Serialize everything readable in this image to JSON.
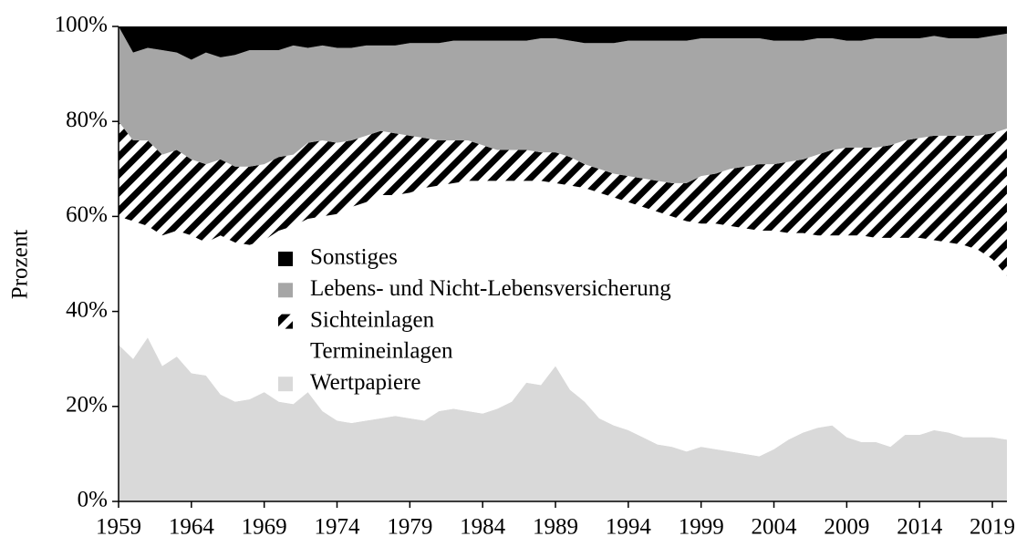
{
  "chart_data": {
    "type": "stacked_area",
    "y_label": "Prozent",
    "x": [
      1959,
      1960,
      1961,
      1962,
      1963,
      1964,
      1965,
      1966,
      1967,
      1968,
      1969,
      1970,
      1971,
      1972,
      1973,
      1974,
      1975,
      1976,
      1977,
      1978,
      1979,
      1980,
      1981,
      1982,
      1983,
      1984,
      1985,
      1986,
      1987,
      1988,
      1989,
      1990,
      1991,
      1992,
      1993,
      1994,
      1995,
      1996,
      1997,
      1998,
      1999,
      2000,
      2001,
      2002,
      2003,
      2004,
      2005,
      2006,
      2007,
      2008,
      2009,
      2010,
      2011,
      2012,
      2013,
      2014,
      2015,
      2016,
      2017,
      2018,
      2019,
      2020
    ],
    "xlim": [
      1959,
      2020
    ],
    "xticks": [
      1959,
      1964,
      1969,
      1974,
      1979,
      1984,
      1989,
      1994,
      1999,
      2004,
      2009,
      2014,
      2019
    ],
    "ylim": [
      0,
      100
    ],
    "yticks": [
      {
        "value": 0,
        "label": "0%"
      },
      {
        "value": 20,
        "label": "20%"
      },
      {
        "value": 40,
        "label": "40%"
      },
      {
        "value": 60,
        "label": "60%"
      },
      {
        "value": 80,
        "label": "80%"
      },
      {
        "value": 100,
        "label": "100%"
      }
    ],
    "series": [
      {
        "name": "Wertpapiere",
        "color": "#d9d9d9",
        "values": [
          33,
          30,
          34.5,
          28.5,
          30.5,
          27,
          26.5,
          22.5,
          21,
          21.5,
          23,
          21,
          20.5,
          23,
          19,
          17,
          16.5,
          17,
          17.5,
          18,
          17.5,
          17,
          19,
          19.5,
          19,
          18.5,
          19.5,
          21,
          25,
          24.5,
          28.5,
          23.5,
          21,
          17.5,
          16,
          15,
          13.5,
          12,
          11.5,
          10.5,
          11.5,
          11,
          10.5,
          10,
          9.5,
          11,
          13,
          14.5,
          15.5,
          16,
          13.5,
          12.5,
          12.5,
          11.5,
          14,
          14,
          15,
          14.5,
          13.5,
          13.5,
          13.5,
          13
        ]
      },
      {
        "name": "Termineinlagen",
        "color": "#ffffff",
        "values": [
          27,
          29,
          23.5,
          27.5,
          26.5,
          29,
          28,
          33.5,
          33.5,
          32.5,
          32,
          36,
          37.5,
          36.5,
          41,
          43.5,
          45.5,
          46,
          47,
          46.5,
          47.5,
          49,
          47.5,
          47.5,
          48.5,
          49,
          48,
          46.5,
          42.5,
          43,
          38.5,
          43,
          45,
          47.5,
          48,
          48,
          48.5,
          49,
          48.5,
          48.5,
          47,
          47.5,
          47.5,
          47.5,
          47.5,
          46,
          43.5,
          42,
          40.5,
          40,
          42.5,
          43.5,
          43,
          44,
          41.5,
          41.5,
          40,
          40,
          40.5,
          39.5,
          37.5,
          34.5
        ]
      },
      {
        "name": "Sichteinlagen",
        "color": "#000000",
        "pattern": "hatch",
        "values": [
          20,
          17,
          18,
          17,
          17,
          16,
          16.5,
          16,
          16,
          16.5,
          16,
          15.5,
          15,
          16,
          16,
          15,
          14,
          14,
          13.5,
          13,
          12,
          10.5,
          9.5,
          9,
          8.5,
          7.5,
          6.5,
          6.5,
          6.5,
          6,
          6.5,
          6,
          5,
          5,
          5,
          5.5,
          6,
          6.5,
          7,
          8,
          10,
          10.5,
          12,
          13,
          14,
          14,
          15,
          15.5,
          17,
          18,
          18.5,
          18.5,
          19,
          19.5,
          20.5,
          21,
          22,
          22.5,
          23,
          24,
          26.5,
          31
        ]
      },
      {
        "name": "Lebens- und Nicht-Lebensversicherung",
        "color": "#a6a6a6",
        "values": [
          20,
          18.5,
          19.5,
          22,
          20.5,
          21,
          23.5,
          21.5,
          23.5,
          24.5,
          24,
          22.5,
          23,
          20,
          20,
          20,
          19.5,
          19,
          18,
          18.5,
          19.5,
          20,
          20.5,
          21,
          21,
          22,
          23,
          23,
          23,
          24,
          24,
          24.5,
          25.5,
          26.5,
          27.5,
          28.5,
          29,
          29.5,
          30,
          30,
          29,
          28.5,
          27.5,
          27,
          26.5,
          26,
          25.5,
          25,
          24.5,
          23.5,
          22.5,
          22.5,
          23,
          22.5,
          21.5,
          21,
          21,
          20.5,
          20.5,
          20.5,
          20.5,
          20
        ]
      },
      {
        "name": "Sonstiges",
        "color": "#000000",
        "values": [
          0,
          5.5,
          4.5,
          5,
          5.5,
          7,
          5.5,
          6.5,
          6,
          5,
          5,
          5,
          4,
          4.5,
          4,
          4.5,
          4.5,
          4,
          4,
          4,
          3.5,
          3.5,
          3.5,
          3,
          3,
          3,
          3,
          3,
          3,
          2.5,
          2.5,
          3,
          3.5,
          3.5,
          3.5,
          3,
          3,
          3,
          3,
          3,
          2.5,
          2.5,
          2.5,
          2.5,
          2.5,
          3,
          3,
          3,
          2.5,
          2.5,
          3,
          3,
          2.5,
          2.5,
          2.5,
          2.5,
          2,
          2.5,
          2.5,
          2.5,
          2,
          1.5
        ]
      }
    ]
  }
}
